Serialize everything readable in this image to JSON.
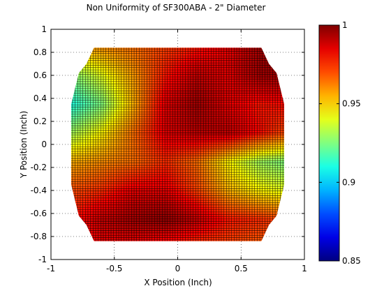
{
  "chart_data": {
    "type": "heatmap",
    "title": "Non Uniformity of SF300ABA - 2\" Diameter",
    "xlabel": "X Position (Inch)",
    "ylabel": "Y Position (Inch)",
    "xlim": [
      -1,
      1
    ],
    "ylim": [
      -1,
      1
    ],
    "grid": true,
    "colormap": "jet",
    "clim": [
      0.85,
      1
    ],
    "x_ticks": [
      -1,
      -0.5,
      0,
      0.5,
      1
    ],
    "x_tick_labels": [
      "-1",
      "-0.5",
      "0",
      "0.5",
      "1"
    ],
    "y_ticks": [
      -1,
      -0.8,
      -0.6,
      -0.4,
      -0.2,
      0,
      0.2,
      0.4,
      0.6,
      0.8,
      1
    ],
    "y_tick_labels": [
      "-1",
      "-0.8",
      "-0.6",
      "-0.4",
      "-0.2",
      "0",
      "0.2",
      "0.4",
      "0.6",
      "0.8",
      "1"
    ],
    "colorbar": {
      "ticks": [
        0.85,
        0.9,
        0.95,
        1
      ],
      "tick_labels": [
        "0.85",
        "0.9",
        "0.95",
        "1"
      ]
    },
    "x_grid": [
      -0.85,
      -0.6,
      -0.35,
      -0.1,
      0.15,
      0.4,
      0.65,
      0.85
    ],
    "y_grid": [
      0.85,
      0.6,
      0.35,
      0.1,
      -0.15,
      -0.4,
      -0.65,
      -0.85
    ],
    "z": [
      [
        0.955,
        0.96,
        0.965,
        0.972,
        0.978,
        0.985,
        0.995,
        0.995
      ],
      [
        0.925,
        0.94,
        0.958,
        0.978,
        0.99,
        0.985,
        0.995,
        0.995
      ],
      [
        0.91,
        0.925,
        0.955,
        0.985,
        0.995,
        0.985,
        0.978,
        0.98
      ],
      [
        0.93,
        0.945,
        0.965,
        0.985,
        0.99,
        0.99,
        0.98,
        0.97
      ],
      [
        0.955,
        0.96,
        0.965,
        0.975,
        0.965,
        0.945,
        0.93,
        0.925
      ],
      [
        0.97,
        0.975,
        0.985,
        0.985,
        0.972,
        0.955,
        0.945,
        0.94
      ],
      [
        0.978,
        0.99,
        0.995,
        0.998,
        0.99,
        0.978,
        0.975,
        0.97
      ],
      [
        0.975,
        0.985,
        0.985,
        0.98,
        0.975,
        0.972,
        0.968,
        0.968
      ]
    ]
  }
}
